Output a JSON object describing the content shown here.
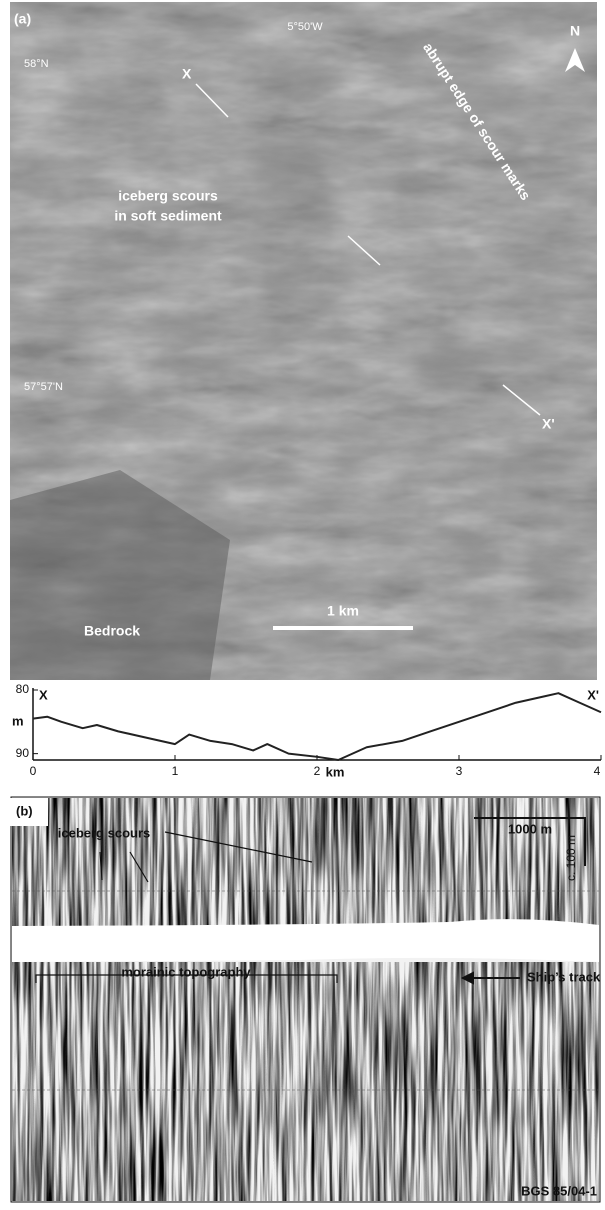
{
  "panel_a": {
    "label": "(a)",
    "longitude": "5°50'W",
    "lat_top": "58°N",
    "lat_mid": "57°57'N",
    "north": "N",
    "x_start": "X",
    "x_end": "X'",
    "edge_note": "abrupt edge of scour marks",
    "scour_note": [
      "iceberg scours",
      "in soft sediment"
    ],
    "bedrock": "Bedrock",
    "scale": "1 km"
  },
  "chart_data": {
    "type": "line",
    "annotations": [
      "X",
      "X'"
    ],
    "x_label": "km",
    "y_label": "m",
    "x": [
      0,
      0.1,
      0.2,
      0.35,
      0.45,
      0.6,
      0.8,
      1.0,
      1.1,
      1.25,
      1.4,
      1.55,
      1.65,
      1.8,
      2.0,
      2.15,
      2.35,
      2.6,
      2.8,
      3.0,
      3.2,
      3.4,
      3.6,
      3.7,
      3.85,
      4.0
    ],
    "values": [
      84.5,
      84.2,
      85,
      86,
      85.5,
      86.5,
      87.5,
      88.5,
      87,
      88,
      88.5,
      89.5,
      88.5,
      90,
      90.5,
      91,
      89,
      88,
      86.5,
      85,
      83.5,
      82,
      81,
      80.5,
      82,
      83.5
    ],
    "color": "#222222",
    "xlim": [
      0,
      4
    ],
    "ylim": [
      80,
      91
    ],
    "y_inverted": true,
    "xticks": [
      0,
      1,
      2,
      3,
      4
    ],
    "yticks": [
      80,
      90
    ]
  },
  "panel_b": {
    "label": "(b)",
    "scours": "iceberg scours",
    "scale_h": "1000 m",
    "scale_v": "c. 100 m",
    "moraine": "morainic topography",
    "track": "Ship’s track",
    "source": "BGS 85/04-1"
  }
}
